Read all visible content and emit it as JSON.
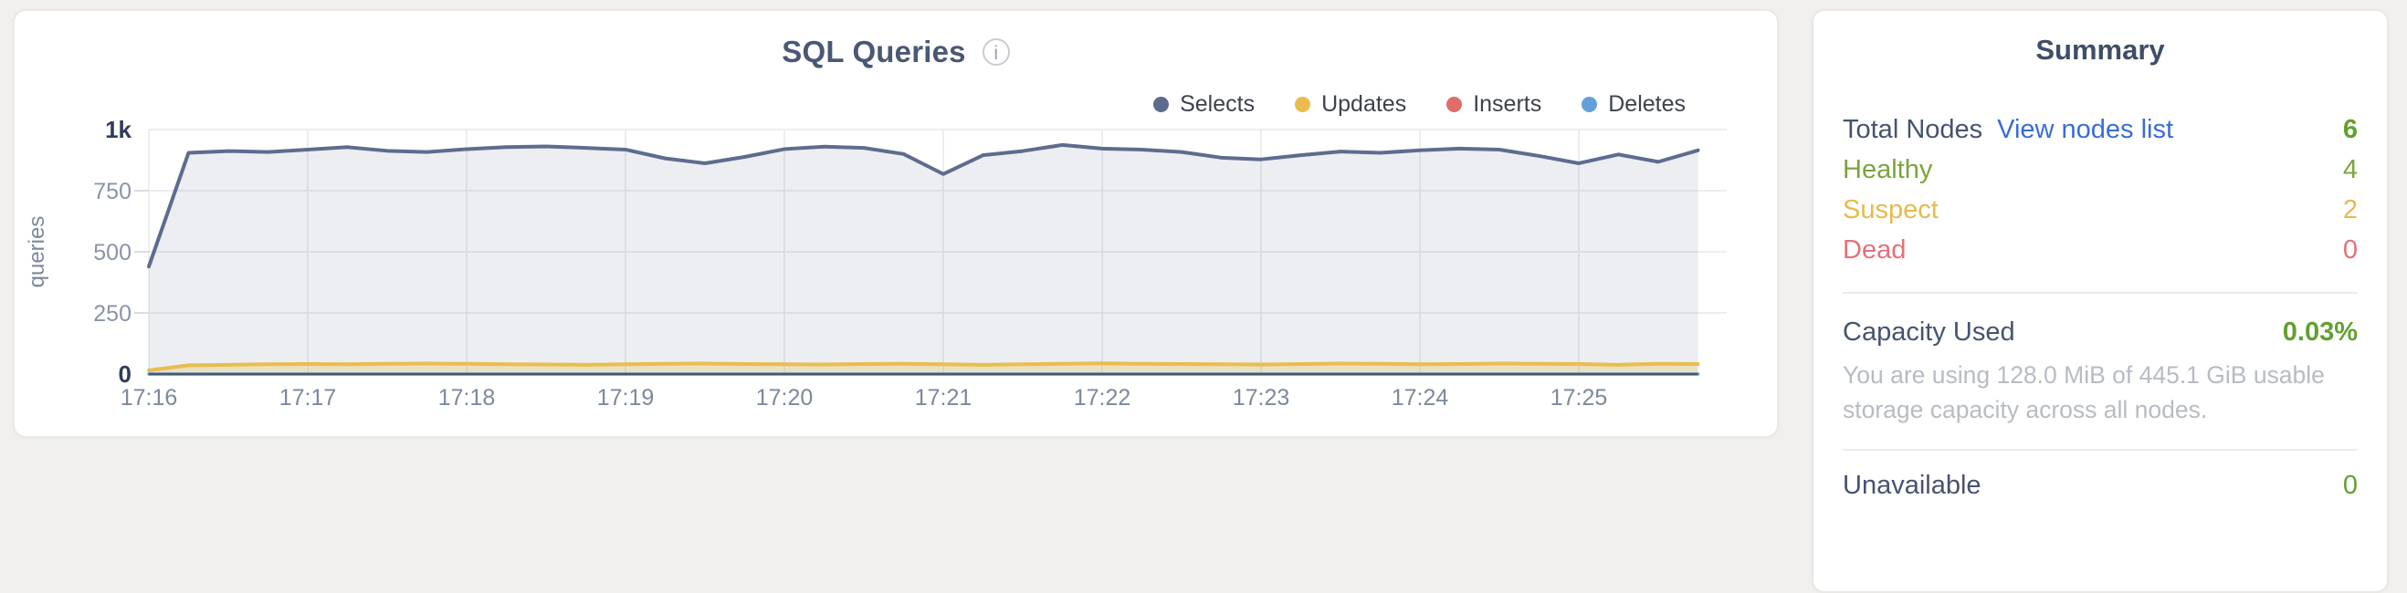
{
  "colors": {
    "page_background": "#f1f0ee",
    "card_background": "#ffffff",
    "title_text": "#4a5775",
    "tick_text": "#7c889c",
    "tick_text_strong": "#2e3c59",
    "gridline": "#e6e8ec",
    "axis_line": "#4b586d",
    "link_blue": "#3a6bd8",
    "green": "#63a02f",
    "healthy_green": "#7aa43c",
    "suspect_amber": "#e7ba4c",
    "dead_red": "#e57078"
  },
  "icons": {
    "info": "i"
  },
  "chart": {
    "title": "SQL Queries"
  },
  "chart_data": {
    "type": "area",
    "title": "SQL Queries",
    "xlabel": "",
    "ylabel": "queries",
    "ylim": [
      0,
      1000
    ],
    "grid": true,
    "legend_position": "top-right",
    "x_tick_labels": [
      "17:16",
      "17:17",
      "17:18",
      "17:19",
      "17:20",
      "17:21",
      "17:22",
      "17:23",
      "17:24",
      "17:25"
    ],
    "y_ticks": [
      0,
      250,
      500,
      750,
      1000
    ],
    "y_tick_labels": [
      "0",
      "250",
      "500",
      "750",
      "1k"
    ],
    "points_per_minute": 4,
    "series": [
      {
        "name": "Selects",
        "color": "#5d6c8e",
        "fill": "rgba(99,113,144,0.12)",
        "stroke_width": 4,
        "values": [
          440,
          905,
          912,
          908,
          918,
          928,
          913,
          908,
          920,
          928,
          931,
          925,
          918,
          882,
          862,
          888,
          920,
          930,
          925,
          900,
          818,
          895,
          912,
          937,
          922,
          918,
          908,
          885,
          878,
          895,
          910,
          905,
          915,
          922,
          918,
          892,
          862,
          898,
          868,
          915
        ]
      },
      {
        "name": "Updates",
        "color": "#e9bd4d",
        "fill": "rgba(236,192,74,0.28)",
        "stroke_width": 4,
        "values": [
          15,
          36,
          38,
          40,
          41,
          40,
          42,
          43,
          42,
          40,
          39,
          38,
          40,
          42,
          43,
          41,
          40,
          39,
          41,
          42,
          40,
          38,
          40,
          42,
          44,
          42,
          41,
          40,
          39,
          41,
          43,
          42,
          40,
          41,
          43,
          42,
          41,
          38,
          42,
          41
        ]
      },
      {
        "name": "Inserts",
        "color": "#e06c6c",
        "fill": "none",
        "stroke_width": 3,
        "values": [
          0,
          0,
          0,
          0,
          0,
          0,
          0,
          0,
          0,
          0,
          0,
          0,
          0,
          0,
          0,
          0,
          0,
          0,
          0,
          0,
          0,
          0,
          0,
          0,
          0,
          0,
          0,
          0,
          0,
          0,
          0,
          0,
          0,
          0,
          0,
          0,
          0,
          0,
          0,
          0
        ]
      },
      {
        "name": "Deletes",
        "color": "#64a0d8",
        "fill": "none",
        "stroke_width": 3.5,
        "values": [
          0,
          0,
          0,
          0,
          0,
          0,
          0,
          0,
          0,
          0,
          0,
          0,
          0,
          0,
          0,
          0,
          0,
          0,
          0,
          0,
          0,
          0,
          0,
          0,
          0,
          0,
          0,
          0,
          0,
          0,
          0,
          0,
          0,
          0,
          0,
          0,
          0,
          0,
          0,
          0
        ]
      }
    ]
  },
  "summary": {
    "heading": "Summary",
    "rows": [
      {
        "label": "Total Nodes",
        "link": "View nodes list",
        "value": "6",
        "label_color": "#46536f",
        "link_color": "#3a6bd8",
        "value_color": "#63a02f"
      },
      {
        "label": "Healthy",
        "value": "4",
        "label_color": "#7aa43c",
        "value_color": "#7aa43c"
      },
      {
        "label": "Suspect",
        "value": "2",
        "label_color": "#e7ba4c",
        "value_color": "#e7ba4c"
      },
      {
        "label": "Dead",
        "value": "0",
        "label_color": "#e57078",
        "value_color": "#e57078"
      }
    ],
    "capacity": {
      "label": "Capacity Used",
      "value": "0.03%",
      "label_color": "#46536f",
      "value_color": "#63a02f",
      "description": "You are using 128.0 MiB of 445.1 GiB usable storage capacity across all nodes."
    },
    "partial_row": {
      "label": "Unavailable",
      "value": "0",
      "label_color": "#46536f",
      "value_color": "#63a02f"
    }
  }
}
